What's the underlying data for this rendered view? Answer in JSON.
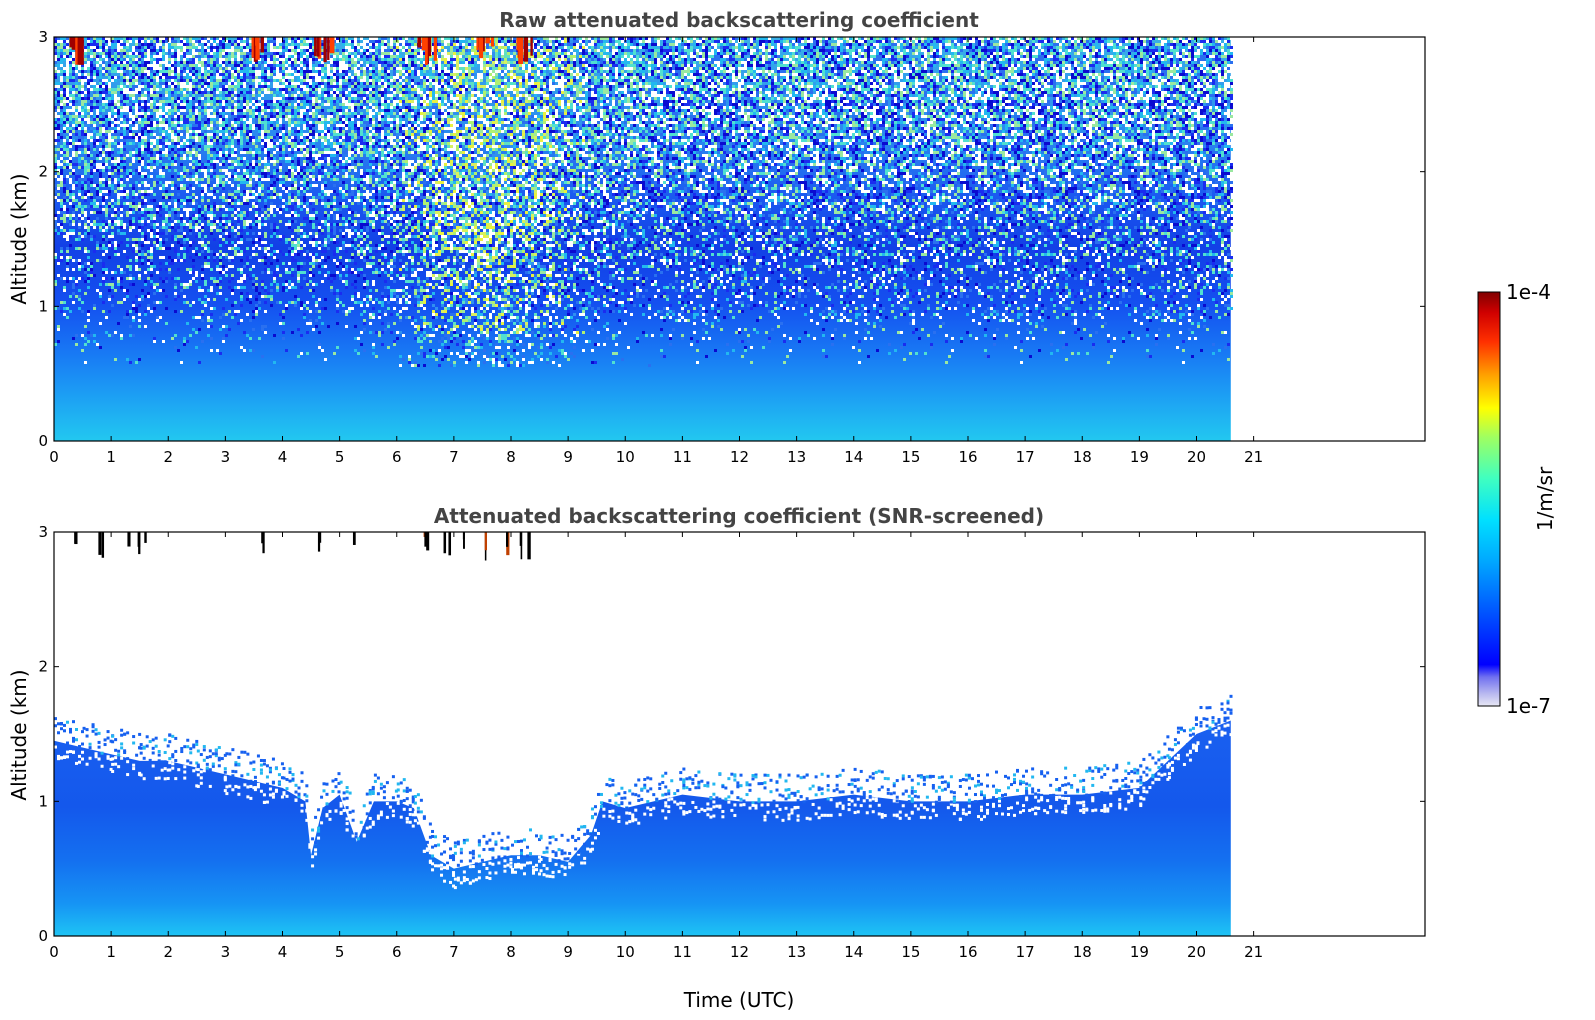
{
  "chart_data": [
    {
      "type": "heatmap",
      "title": "Raw attenuated backscattering coefficient",
      "xlabel": "",
      "ylabel": "Altitude (km)",
      "xlim": [
        0,
        24
      ],
      "ylim": [
        0,
        3
      ],
      "x_ticks": [
        0,
        1,
        2,
        3,
        4,
        5,
        6,
        7,
        8,
        9,
        10,
        11,
        12,
        13,
        14,
        15,
        16,
        17,
        18,
        19,
        20,
        21
      ],
      "y_ticks": [
        0,
        1,
        2,
        3
      ],
      "data_extent_x": [
        0,
        20.6
      ],
      "grid": false,
      "legend": "none",
      "description_regions": [
        {
          "altitude_km": [
            0,
            0.6
          ],
          "level": "blue-cyan",
          "value": "~1e-6"
        },
        {
          "altitude_km": [
            0.6,
            1.5
          ],
          "level": "deep-blue",
          "value": "~3e-7"
        },
        {
          "altitude_km": [
            1.5,
            3
          ],
          "level": "noisy blue/cyan/white",
          "value": "noise"
        }
      ],
      "daytime_noise_band_x": [
        5.5,
        9.5
      ],
      "high_value_spikes_x": [
        0.3,
        3.6,
        4.7,
        6.5,
        7.5,
        8.2
      ]
    },
    {
      "type": "heatmap",
      "title": "Attenuated backscattering coefficient (SNR-screened)",
      "xlabel": "Time (UTC)",
      "ylabel": "Altitude (km)",
      "xlim": [
        0,
        24
      ],
      "ylim": [
        0,
        3
      ],
      "x_ticks": [
        0,
        1,
        2,
        3,
        4,
        5,
        6,
        7,
        8,
        9,
        10,
        11,
        12,
        13,
        14,
        15,
        16,
        17,
        18,
        19,
        20,
        21
      ],
      "y_ticks": [
        0,
        1,
        2,
        3
      ],
      "data_extent_x": [
        0,
        20.6
      ],
      "grid": false,
      "legend": "none",
      "screened_top_km": [
        [
          0,
          1.45
        ],
        [
          0.5,
          1.4
        ],
        [
          1,
          1.35
        ],
        [
          1.5,
          1.3
        ],
        [
          2,
          1.3
        ],
        [
          2.5,
          1.25
        ],
        [
          3,
          1.2
        ],
        [
          3.5,
          1.15
        ],
        [
          4,
          1.1
        ],
        [
          4.4,
          1.0
        ],
        [
          4.5,
          0.6
        ],
        [
          4.7,
          0.95
        ],
        [
          5,
          1.05
        ],
        [
          5.3,
          0.7
        ],
        [
          5.6,
          1.0
        ],
        [
          6,
          1.0
        ],
        [
          6.3,
          0.95
        ],
        [
          6.6,
          0.6
        ],
        [
          7,
          0.5
        ],
        [
          7.5,
          0.55
        ],
        [
          8,
          0.6
        ],
        [
          8.5,
          0.6
        ],
        [
          9,
          0.55
        ],
        [
          9.4,
          0.75
        ],
        [
          9.6,
          1.0
        ],
        [
          10,
          0.95
        ],
        [
          11,
          1.05
        ],
        [
          12,
          1.0
        ],
        [
          13,
          1.0
        ],
        [
          14,
          1.05
        ],
        [
          15,
          1.0
        ],
        [
          16,
          1.0
        ],
        [
          17,
          1.05
        ],
        [
          18,
          1.05
        ],
        [
          19,
          1.1
        ],
        [
          19.5,
          1.3
        ],
        [
          20,
          1.5
        ],
        [
          20.6,
          1.6
        ]
      ]
    }
  ],
  "colorbar": {
    "label": "1/m/sr",
    "max_label": "1e-4",
    "min_label": "1e-7",
    "scale": "log",
    "range": [
      1e-07,
      0.0001
    ],
    "colormap": "jet"
  }
}
